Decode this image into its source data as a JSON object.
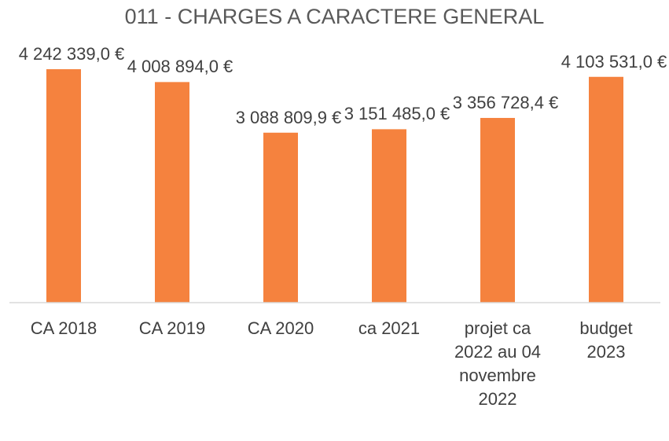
{
  "chart_data": {
    "type": "bar",
    "title": "011 - CHARGES A CARACTERE GENERAL",
    "categories": [
      "CA 2018",
      "CA 2019",
      "CA 2020",
      "ca 2021",
      "projet ca 2022 au 04 novembre 2022",
      "budget 2023"
    ],
    "values": [
      4242339.0,
      4008894.0,
      3088809.9,
      3151485.0,
      3356728.4,
      4103531.0
    ],
    "value_labels": [
      "4 242 339,0 €",
      "4 008 894,0 €",
      "3 088 809,9 €",
      "3 151 485,0 €",
      "3 356 728,4 €",
      "4 103 531,0 €"
    ],
    "color": "#f5823e",
    "ylim": [
      0,
      5000000
    ]
  }
}
